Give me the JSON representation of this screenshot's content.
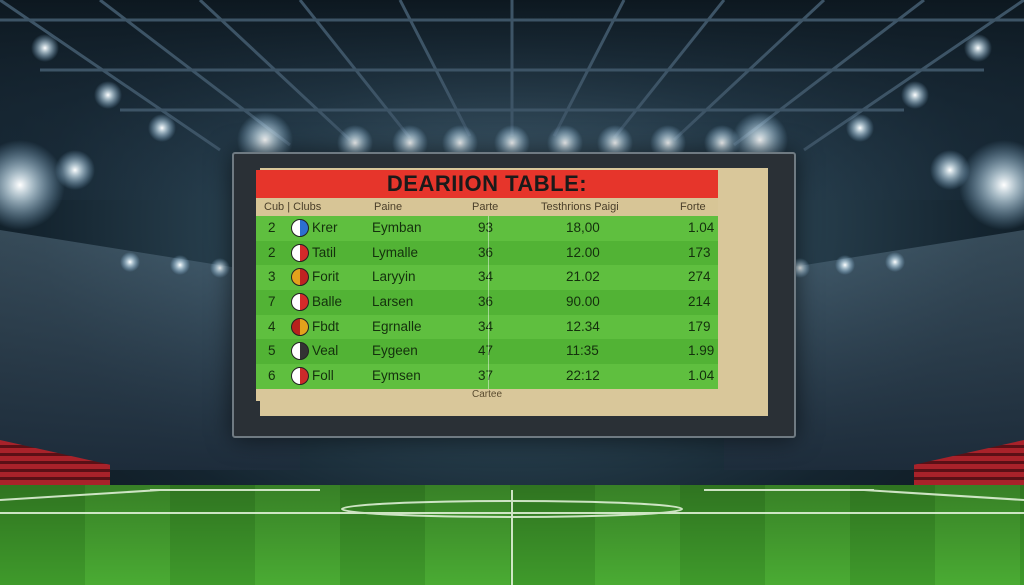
{
  "scoreboard": {
    "title": "DEARIION TABLE:",
    "headers": [
      "Cub | Clubs",
      "Paine",
      "Parte",
      "Testhrions Paigi",
      "Forte"
    ],
    "rows": [
      {
        "pos": "2",
        "club": "Krer",
        "name": "Eymban",
        "c3": "93",
        "c4": "18,00",
        "c5": "1.04",
        "badge": [
          "#ffffff",
          "#2c6fd1"
        ]
      },
      {
        "pos": "2",
        "club": "Tatil",
        "name": "Lymalle",
        "c3": "36",
        "c4": "12.00",
        "c5": "173",
        "badge": [
          "#ffffff",
          "#d42a2a"
        ]
      },
      {
        "pos": "3",
        "club": "Forit",
        "name": "Laryyin",
        "c3": "34",
        "c4": "21.02",
        "c5": "274",
        "badge": [
          "#e3a21c",
          "#c02222"
        ]
      },
      {
        "pos": "7",
        "club": "Balle",
        "name": "Larsen",
        "c3": "36",
        "c4": "90.00",
        "c5": "214",
        "badge": [
          "#ffffff",
          "#d42a2a"
        ]
      },
      {
        "pos": "4",
        "club": "Fbdt",
        "name": "Egrnalle",
        "c3": "34",
        "c4": "12.34",
        "c5": "179",
        "badge": [
          "#b8221c",
          "#e3a21c"
        ]
      },
      {
        "pos": "5",
        "club": "Veal",
        "name": "Eygeen",
        "c3": "47",
        "c4": "11:35",
        "c5": "1.99",
        "badge": [
          "#ffffff",
          "#333333"
        ]
      },
      {
        "pos": "6",
        "club": "Foll",
        "name": "Eymsen",
        "c3": "37",
        "c4": "22:12",
        "c5": "1.04",
        "badge": [
          "#ffffff",
          "#cc2a2a"
        ]
      }
    ],
    "footer": "Cartee"
  }
}
